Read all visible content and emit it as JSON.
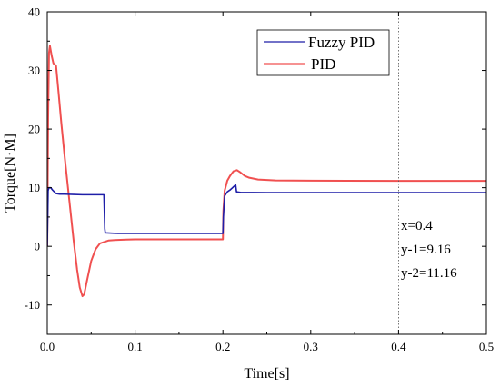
{
  "chart_data": {
    "type": "line",
    "title": "",
    "xlabel": "Time[s]",
    "ylabel": "Torque[N·M]",
    "xlim": [
      0,
      0.5
    ],
    "ylim": [
      -15,
      40
    ],
    "x_ticks": [
      0.0,
      0.1,
      0.2,
      0.3,
      0.4,
      0.5
    ],
    "x_tick_labels": [
      "0.0",
      "0.1",
      "0.2",
      "0.3",
      "0.4",
      "0.5"
    ],
    "y_ticks": [
      -10,
      0,
      10,
      20,
      30,
      40
    ],
    "y_tick_labels": [
      "-10",
      "0",
      "10",
      "20",
      "30",
      "40"
    ],
    "grid": false,
    "legend": "top-center",
    "series": [
      {
        "name": "Fuzzy PID",
        "color": "#1f1fa8",
        "x": [
          0,
          0.001,
          0.002,
          0.004,
          0.006,
          0.008,
          0.01,
          0.014,
          0.02,
          0.03,
          0.04,
          0.05,
          0.06,
          0.0645,
          0.0655,
          0.066,
          0.08,
          0.1,
          0.15,
          0.199,
          0.2,
          0.2005,
          0.202,
          0.205,
          0.208,
          0.211,
          0.2145,
          0.2155,
          0.22,
          0.25,
          0.3,
          0.4,
          0.5
        ],
        "values": [
          0,
          9.5,
          10.0,
          10.0,
          9.6,
          9.3,
          9.0,
          8.9,
          8.9,
          8.85,
          8.8,
          8.8,
          8.8,
          8.8,
          3.0,
          2.3,
          2.2,
          2.2,
          2.2,
          2.2,
          2.2,
          5.0,
          8.6,
          9.3,
          9.6,
          10.0,
          10.5,
          9.3,
          9.2,
          9.16,
          9.16,
          9.16,
          9.16
        ]
      },
      {
        "name": "PID",
        "color": "#f05050",
        "x": [
          0,
          0.001,
          0.002,
          0.003,
          0.005,
          0.007,
          0.01,
          0.013,
          0.016,
          0.02,
          0.025,
          0.03,
          0.034,
          0.037,
          0.04,
          0.042,
          0.045,
          0.05,
          0.055,
          0.06,
          0.07,
          0.08,
          0.09,
          0.1,
          0.15,
          0.199,
          0.2,
          0.2005,
          0.202,
          0.205,
          0.208,
          0.212,
          0.216,
          0.22,
          0.225,
          0.23,
          0.24,
          0.26,
          0.3,
          0.4,
          0.5
        ],
        "values": [
          0,
          22,
          33,
          34.2,
          32.5,
          31.2,
          30.8,
          26,
          21,
          15,
          8,
          1,
          -4,
          -7,
          -8.5,
          -8.2,
          -6,
          -2.5,
          -0.5,
          0.5,
          1.0,
          1.1,
          1.15,
          1.2,
          1.2,
          1.2,
          1.2,
          6,
          9.5,
          11.2,
          12.0,
          12.8,
          13.0,
          12.6,
          12.0,
          11.7,
          11.4,
          11.25,
          11.2,
          11.16,
          11.16
        ]
      }
    ],
    "marker_line": {
      "x": 0.4,
      "style": "dotted"
    },
    "annotations": [
      "x=0.4",
      "y-1=9.16",
      "y-2=11.16"
    ]
  }
}
